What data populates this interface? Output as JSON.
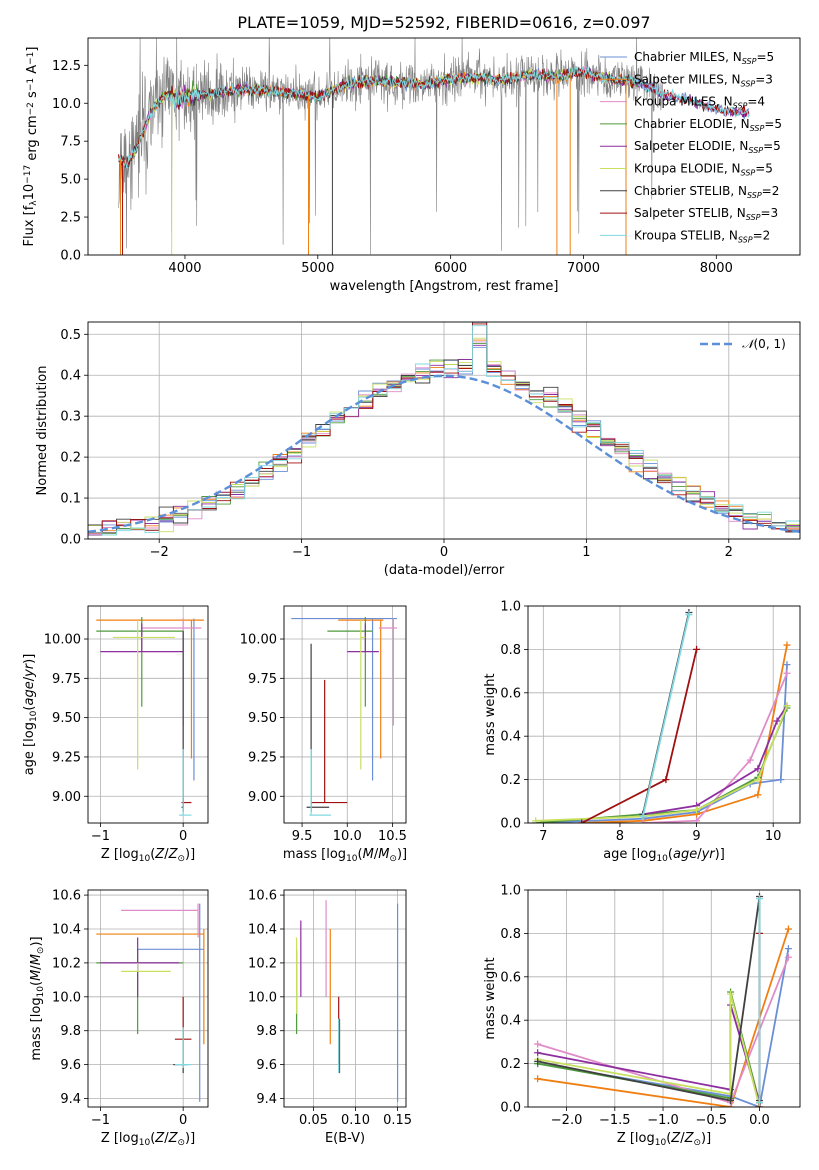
{
  "figure_title": "PLATE=1059, MJD=52592, FIBERID=0616, z=0.097",
  "colors": {
    "c0": "#6b8fd6",
    "c1": "#f07f13",
    "c2": "#e08cc8",
    "c3": "#4f9a3c",
    "c4": "#8e2fa0",
    "c5": "#c8e060",
    "c6": "#404040",
    "c7": "#a01010",
    "c8": "#80d8e0",
    "grey": "#808080",
    "normal": "#5b8fd9"
  },
  "legend_entries": [
    "Chabrier MILES, N_SSP=5",
    "Salpeter MILES, N_SSP=3",
    "Kroupa MILES, N_SSP=4",
    "Chabrier ELODIE, N_SSP=5",
    "Salpeter ELODIE, N_SSP=5",
    "Kroupa ELODIE, N_SSP=5",
    "Chabrier STELIB, N_SSP=2",
    "Salpeter STELIB, N_SSP=3",
    "Kroupa STELIB, N_SSP=2"
  ],
  "chart_data": [
    {
      "id": "spectrum",
      "type": "line",
      "xlabel": "wavelength [Angstrom, rest frame]",
      "ylabel": "Flux [f_λ 10^-17 erg cm^-2 s^-1 A^-1]",
      "xlim": [
        3270,
        8630
      ],
      "ylim": [
        0,
        14.3
      ],
      "xticks": [
        4000,
        5000,
        6000,
        7000,
        8000
      ],
      "yticks": [
        0.0,
        2.5,
        5.0,
        7.5,
        10.0,
        12.5
      ],
      "ytick_labels": [
        "0.0",
        "2.5",
        "5.0",
        "7.5",
        "10.0",
        "12.5"
      ],
      "grid": false,
      "legend_position": "top-right",
      "anchor_points": {
        "x": [
          3500,
          3560,
          3650,
          3750,
          3850,
          3950,
          4050,
          4200,
          4400,
          4600,
          4800,
          5000,
          5200,
          5400,
          5600,
          5800,
          6000,
          6200,
          6400,
          6600,
          6800,
          7000,
          7200,
          7400,
          7600,
          7800,
          8000,
          8200
        ],
        "y": [
          6.4,
          6.0,
          7.3,
          9.5,
          10.6,
          10.3,
          10.5,
          10.6,
          10.9,
          10.8,
          10.7,
          10.4,
          11.2,
          11.5,
          11.4,
          11.2,
          11.6,
          11.7,
          11.5,
          11.9,
          11.8,
          12.1,
          11.6,
          11.4,
          10.6,
          10.2,
          9.6,
          9.4
        ]
      }
    },
    {
      "id": "residuals",
      "type": "histogram",
      "xlabel": "(data-model)/error",
      "ylabel": "Normed distribution",
      "xlim": [
        -2.5,
        2.5
      ],
      "ylim": [
        0,
        0.53
      ],
      "xticks": [
        -2,
        -1,
        0,
        1,
        2
      ],
      "xtick_labels": [
        "−2",
        "−1",
        "0",
        "1",
        "2"
      ],
      "yticks": [
        0.0,
        0.1,
        0.2,
        0.3,
        0.4,
        0.5
      ],
      "ytick_labels": [
        "0.0",
        "0.1",
        "0.2",
        "0.3",
        "0.4",
        "0.5"
      ],
      "grid": true,
      "legend_position": "top-right",
      "legend_label": "N(0,1)",
      "bin_width": 0.1
    },
    {
      "id": "age-vs-Z",
      "type": "errorbar",
      "xlabel": "Z [log10(Z/Z⊙)]",
      "ylabel": "age  [log10(age/yr)]",
      "xlim": [
        -1.15,
        0.3
      ],
      "ylim": [
        8.83,
        10.21
      ],
      "xticks": [
        -1,
        0
      ],
      "xtick_labels": [
        "−1",
        "0"
      ],
      "yticks": [
        9.0,
        9.25,
        9.5,
        9.75,
        10.0
      ],
      "ytick_labels": [
        "9.00",
        "9.25",
        "9.50",
        "9.75",
        "10.00"
      ],
      "grid": true,
      "points": [
        {
          "c": "c0",
          "x": 0.13,
          "xe": [
            0.13,
            0.13
          ],
          "y": 9.6,
          "ye": [
            9.1,
            10.13
          ]
        },
        {
          "c": "c1",
          "x": 0.1,
          "xe": [
            -1.05,
            0.25
          ],
          "y": 10.12,
          "ye": [
            9.24,
            10.12
          ]
        },
        {
          "c": "c2",
          "x": 0.0,
          "xe": [
            -0.5,
            0.22
          ],
          "y": 10.07,
          "ye": [
            9.45,
            10.13
          ]
        },
        {
          "c": "c3",
          "x": -0.5,
          "xe": [
            -1.05,
            0.0
          ],
          "y": 10.05,
          "ye": [
            9.57,
            10.14
          ]
        },
        {
          "c": "c4",
          "x": -0.5,
          "xe": [
            -1.0,
            0.0
          ],
          "y": 9.92,
          "ye": [
            9.92,
            10.1
          ]
        },
        {
          "c": "c5",
          "x": -0.55,
          "xe": [
            -0.85,
            -0.1
          ],
          "y": 10.01,
          "ye": [
            9.17,
            10.12
          ]
        },
        {
          "c": "c6",
          "x": 0.0,
          "xe": [
            -0.02,
            0.0
          ],
          "y": 8.93,
          "ye": [
            8.9,
            10.05
          ]
        },
        {
          "c": "c7",
          "x": 0.0,
          "xe": [
            -0.02,
            0.1
          ],
          "y": 8.96,
          "ye": [
            8.93,
            8.99
          ]
        },
        {
          "c": "c8",
          "x": 0.0,
          "xe": [
            -0.05,
            0.1
          ],
          "y": 8.88,
          "ye": [
            8.88,
            9.3
          ]
        }
      ]
    },
    {
      "id": "age-vs-mass",
      "type": "errorbar",
      "xlabel": "mass [log10(M/M⊙)]",
      "ylabel": "",
      "xlim": [
        9.3,
        10.65
      ],
      "ylim": [
        8.83,
        10.21
      ],
      "xticks": [
        9.5,
        10.0,
        10.5
      ],
      "xtick_labels": [
        "9.5",
        "10.0",
        "10.5"
      ],
      "yticks": [
        9.0,
        9.25,
        9.5,
        9.75,
        10.0
      ],
      "ytick_labels": [
        "9.00",
        "9.25",
        "9.50",
        "9.75",
        "10.00"
      ],
      "grid": true,
      "points": [
        {
          "c": "c0",
          "x": 10.28,
          "xe": [
            9.38,
            10.55
          ],
          "y": 10.13,
          "ye": [
            9.1,
            10.13
          ]
        },
        {
          "c": "c1",
          "x": 10.37,
          "xe": [
            9.9,
            10.4
          ],
          "y": 10.12,
          "ye": [
            9.24,
            10.12
          ]
        },
        {
          "c": "c2",
          "x": 10.51,
          "xe": [
            10.35,
            10.55
          ],
          "y": 10.07,
          "ye": [
            9.45,
            10.13
          ]
        },
        {
          "c": "c3",
          "x": 10.2,
          "xe": [
            9.78,
            10.28
          ],
          "y": 10.05,
          "ye": [
            9.57,
            10.14
          ]
        },
        {
          "c": "c4",
          "x": 10.2,
          "xe": [
            10.0,
            10.35
          ],
          "y": 9.92,
          "ye": [
            9.92,
            10.1
          ]
        },
        {
          "c": "c5",
          "x": 10.15,
          "xe": [
            10.15,
            10.2
          ],
          "y": 10.01,
          "ye": [
            9.17,
            10.12
          ]
        },
        {
          "c": "c6",
          "x": 9.6,
          "xe": [
            9.55,
            9.8
          ],
          "y": 8.93,
          "ye": [
            8.9,
            9.97
          ]
        },
        {
          "c": "c7",
          "x": 9.75,
          "xe": [
            9.6,
            10.0
          ],
          "y": 8.96,
          "ye": [
            8.96,
            9.74
          ]
        },
        {
          "c": "c8",
          "x": 9.6,
          "xe": [
            9.58,
            9.82
          ],
          "y": 8.88,
          "ye": [
            8.88,
            9.3
          ]
        }
      ]
    },
    {
      "id": "mass-weight-vs-age",
      "type": "line",
      "xlabel": "age  [log10(age/yr)]",
      "ylabel": "mass weight",
      "xlim": [
        6.8,
        10.35
      ],
      "ylim": [
        0,
        1.0
      ],
      "xticks": [
        7,
        8,
        9,
        10
      ],
      "xtick_labels": [
        "7",
        "8",
        "9",
        "10"
      ],
      "yticks": [
        0.0,
        0.2,
        0.4,
        0.6,
        0.8,
        1.0
      ],
      "ytick_labels": [
        "0.0",
        "0.2",
        "0.4",
        "0.6",
        "0.8",
        "1.0"
      ],
      "grid": true,
      "series": [
        {
          "c": "c0",
          "x": [
            6.9,
            8.3,
            9.0,
            9.7,
            10.1,
            10.18
          ],
          "y": [
            0.0,
            0.02,
            0.05,
            0.18,
            0.2,
            0.73
          ]
        },
        {
          "c": "c1",
          "x": [
            7.5,
            8.3,
            9.0,
            9.8,
            10.18
          ],
          "y": [
            0.0,
            0.01,
            0.04,
            0.13,
            0.82
          ]
        },
        {
          "c": "c2",
          "x": [
            8.3,
            9.0,
            9.7,
            10.18
          ],
          "y": [
            0.0,
            0.01,
            0.29,
            0.69
          ]
        },
        {
          "c": "c3",
          "x": [
            6.9,
            8.3,
            9.0,
            9.8,
            10.18
          ],
          "y": [
            0.0,
            0.04,
            0.06,
            0.21,
            0.53
          ]
        },
        {
          "c": "c4",
          "x": [
            8.3,
            9.0,
            9.8,
            10.05,
            10.18
          ],
          "y": [
            0.04,
            0.08,
            0.25,
            0.47,
            0.54
          ]
        },
        {
          "c": "c5",
          "x": [
            6.9,
            8.3,
            9.0,
            9.8,
            10.18
          ],
          "y": [
            0.01,
            0.03,
            0.06,
            0.2,
            0.54
          ]
        },
        {
          "c": "c6",
          "x": [
            8.3,
            8.9
          ],
          "y": [
            0.04,
            0.97
          ]
        },
        {
          "c": "c7",
          "x": [
            7.5,
            8.6,
            9.0
          ],
          "y": [
            0.0,
            0.2,
            0.8
          ]
        },
        {
          "c": "c8",
          "x": [
            8.3,
            8.9
          ],
          "y": [
            0.03,
            0.96
          ]
        }
      ]
    },
    {
      "id": "mass-vs-Z",
      "type": "errorbar",
      "xlabel": "Z [log10(Z/Z⊙)]",
      "ylabel": "mass [log10(M/M⊙)]",
      "xlim": [
        -1.15,
        0.3
      ],
      "ylim": [
        9.35,
        10.63
      ],
      "xticks": [
        -1,
        0
      ],
      "xtick_labels": [
        "−1",
        "0"
      ],
      "yticks": [
        9.4,
        9.6,
        9.8,
        10.0,
        10.2,
        10.4,
        10.6
      ],
      "ytick_labels": [
        "9.4",
        "9.6",
        "9.8",
        "10.0",
        "10.2",
        "10.4",
        "10.6"
      ],
      "grid": true,
      "points": [
        {
          "c": "c0",
          "x": 0.2,
          "xe": [
            -0.55,
            0.25
          ],
          "y": 10.28,
          "ye": [
            9.38,
            10.55
          ]
        },
        {
          "c": "c1",
          "x": 0.25,
          "xe": [
            -1.05,
            0.25
          ],
          "y": 10.37,
          "ye": [
            9.72,
            10.4
          ]
        },
        {
          "c": "c2",
          "x": 0.18,
          "xe": [
            -0.75,
            0.18
          ],
          "y": 10.51,
          "ye": [
            10.35,
            10.55
          ]
        },
        {
          "c": "c3",
          "x": -0.55,
          "xe": [
            -1.05,
            0.0
          ],
          "y": 10.2,
          "ye": [
            9.78,
            10.28
          ]
        },
        {
          "c": "c4",
          "x": -0.55,
          "xe": [
            -1.0,
            -0.05
          ],
          "y": 10.2,
          "ye": [
            10.0,
            10.35
          ]
        },
        {
          "c": "c5",
          "x": -0.55,
          "xe": [
            -0.75,
            -0.15
          ],
          "y": 10.15,
          "ye": [
            10.15,
            10.2
          ]
        },
        {
          "c": "c6",
          "x": 0.0,
          "xe": [
            -0.12,
            0.05
          ],
          "y": 9.6,
          "ye": [
            9.55,
            9.8
          ]
        },
        {
          "c": "c7",
          "x": 0.0,
          "xe": [
            -0.1,
            0.1
          ],
          "y": 9.75,
          "ye": [
            9.75,
            10.0
          ]
        },
        {
          "c": "c8",
          "x": 0.0,
          "xe": [
            -0.1,
            0.1
          ],
          "y": 9.6,
          "ye": [
            9.58,
            9.82
          ]
        }
      ]
    },
    {
      "id": "mass-vs-EBV",
      "type": "errorbar",
      "xlabel": "E(B-V)",
      "ylabel": "",
      "xlim": [
        0.015,
        0.16
      ],
      "ylim": [
        9.35,
        10.63
      ],
      "xticks": [
        0.05,
        0.1,
        0.15
      ],
      "xtick_labels": [
        "0.05",
        "0.10",
        "0.15"
      ],
      "yticks": [
        9.4,
        9.6,
        9.8,
        10.0,
        10.2,
        10.4,
        10.6
      ],
      "ytick_labels": [
        "9.4",
        "9.6",
        "9.8",
        "10.0",
        "10.2",
        "10.4",
        "10.6"
      ],
      "grid": true,
      "points": [
        {
          "c": "c0",
          "x": 0.15,
          "xe": [
            0.15,
            0.15
          ],
          "y": 10.28,
          "ye": [
            9.38,
            10.55
          ]
        },
        {
          "c": "c1",
          "x": 0.07,
          "xe": [
            0.07,
            0.07
          ],
          "y": 10.0,
          "ye": [
            9.72,
            10.4
          ]
        },
        {
          "c": "c2",
          "x": 0.065,
          "xe": [
            0.065,
            0.065
          ],
          "y": 10.35,
          "ye": [
            10.0,
            10.57
          ]
        },
        {
          "c": "c3",
          "x": 0.03,
          "xe": [
            0.03,
            0.03
          ],
          "y": 10.0,
          "ye": [
            9.78,
            10.28
          ]
        },
        {
          "c": "c4",
          "x": 0.035,
          "xe": [
            0.035,
            0.035
          ],
          "y": 10.2,
          "ye": [
            10.0,
            10.45
          ]
        },
        {
          "c": "c5",
          "x": 0.03,
          "xe": [
            0.03,
            0.03
          ],
          "y": 10.1,
          "ye": [
            9.9,
            10.35
          ]
        },
        {
          "c": "c6",
          "x": 0.081,
          "xe": [
            0.081,
            0.081
          ],
          "y": 9.7,
          "ye": [
            9.55,
            9.87
          ]
        },
        {
          "c": "c7",
          "x": 0.08,
          "xe": [
            0.08,
            0.08
          ],
          "y": 9.8,
          "ye": [
            9.6,
            10.0
          ]
        },
        {
          "c": "c8",
          "x": 0.08,
          "xe": [
            0.08,
            0.08
          ],
          "y": 9.7,
          "ye": [
            9.55,
            9.87
          ]
        }
      ]
    },
    {
      "id": "mass-weight-vs-Z",
      "type": "line",
      "xlabel": "Z [log10(Z/Z⊙)]",
      "ylabel": "mass weight",
      "xlim": [
        -2.4,
        0.42
      ],
      "ylim": [
        0,
        1.0
      ],
      "xticks": [
        -2.0,
        -1.5,
        -1.0,
        -0.5,
        0.0
      ],
      "xtick_labels": [
        "−2.0",
        "−1.5",
        "−1.0",
        "−0.5",
        "0.0"
      ],
      "yticks": [
        0.0,
        0.2,
        0.4,
        0.6,
        0.8,
        1.0
      ],
      "ytick_labels": [
        "0.0",
        "0.2",
        "0.4",
        "0.6",
        "0.8",
        "1.0"
      ],
      "grid": true,
      "series": [
        {
          "c": "c0",
          "x": [
            -2.3,
            -0.3,
            0.0,
            0.3
          ],
          "y": [
            0.2,
            0.05,
            0.0,
            0.73
          ]
        },
        {
          "c": "c1",
          "x": [
            -2.3,
            -0.3,
            0.3
          ],
          "y": [
            0.13,
            0.0,
            0.82
          ]
        },
        {
          "c": "c2",
          "x": [
            -2.3,
            -0.3,
            0.3
          ],
          "y": [
            0.29,
            0.02,
            0.69
          ]
        },
        {
          "c": "c3",
          "x": [
            -2.3,
            -0.3,
            -0.3,
            0.0
          ],
          "y": [
            0.2,
            0.04,
            0.53,
            0.02
          ]
        },
        {
          "c": "c4",
          "x": [
            -2.3,
            -0.3,
            -0.3,
            0.0
          ],
          "y": [
            0.25,
            0.08,
            0.47,
            0.02
          ]
        },
        {
          "c": "c5",
          "x": [
            -2.3,
            -0.3,
            -0.3,
            0.0
          ],
          "y": [
            0.22,
            0.06,
            0.52,
            0.0
          ]
        },
        {
          "c": "c6",
          "x": [
            -2.3,
            -0.3,
            0.0,
            0.0
          ],
          "y": [
            0.21,
            0.03,
            0.97,
            0.03
          ]
        },
        {
          "c": "c7",
          "x": [
            0.0,
            0.0
          ],
          "y": [
            0.8,
            0.0
          ]
        },
        {
          "c": "c8",
          "x": [
            0.0,
            0.0
          ],
          "y": [
            0.96,
            0.02
          ]
        }
      ]
    }
  ]
}
